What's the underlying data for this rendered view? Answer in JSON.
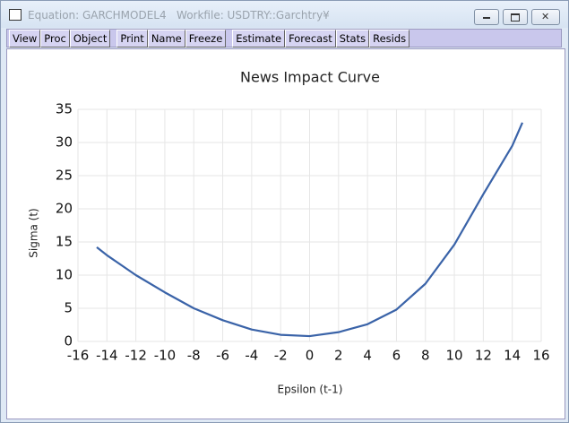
{
  "window": {
    "title": "Equation: GARCHMODEL4   Workfile: USDTRY::Garchtry¥",
    "toolbar": [
      [
        "View",
        "Proc",
        "Object"
      ],
      [
        "Print",
        "Name",
        "Freeze"
      ],
      [
        "Estimate",
        "Forecast",
        "Stats",
        "Resids"
      ]
    ]
  },
  "chart_data": {
    "type": "line",
    "title": "News Impact Curve",
    "xlabel": "Epsilon (t-1)",
    "ylabel": "Sigma (t)",
    "x": [
      -14.7,
      -14,
      -12,
      -10,
      -8,
      -6,
      -4,
      -2,
      0,
      2,
      4,
      6,
      8,
      10,
      12,
      14,
      14.7
    ],
    "series": [
      {
        "name": "Sigma (t)",
        "color": "#3a63a8",
        "values": [
          14.2,
          13,
          10,
          7.4,
          5.0,
          3.2,
          1.8,
          1.0,
          0.8,
          1.4,
          2.6,
          4.8,
          8.7,
          14.6,
          22.2,
          29.5,
          33
        ]
      }
    ],
    "xlim": [
      -16,
      16
    ],
    "xticks": [
      -16,
      -14,
      -12,
      -10,
      -8,
      -6,
      -4,
      -2,
      0,
      2,
      4,
      6,
      8,
      10,
      12,
      14,
      16
    ],
    "ylim": [
      0,
      35
    ],
    "yticks": [
      0,
      5,
      10,
      15,
      20,
      25,
      30,
      35
    ],
    "grid": true
  }
}
